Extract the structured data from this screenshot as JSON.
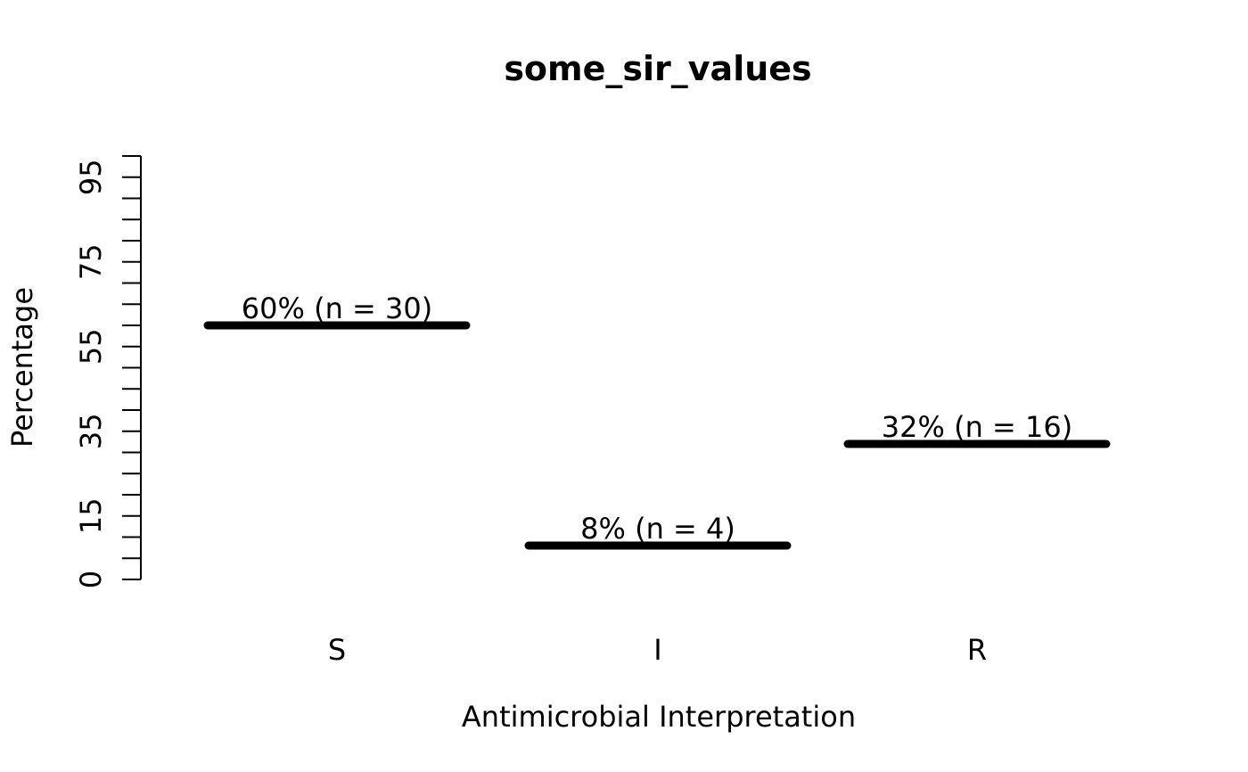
{
  "chart_data": {
    "type": "bar",
    "style": "horizontal-segment-bars",
    "title": "some_sir_values",
    "xlabel": "Antimicrobial Interpretation",
    "ylabel": "Percentage",
    "categories": [
      "S",
      "I",
      "R"
    ],
    "values": [
      60,
      8,
      32
    ],
    "counts": [
      30,
      4,
      16
    ],
    "value_labels": [
      "60% (n = 30)",
      "8% (n = 4)",
      "32% (n = 16)"
    ],
    "ylim": [
      0,
      100
    ],
    "y_tick_step": 5,
    "y_labeled_ticks": [
      0,
      15,
      35,
      55,
      75,
      95
    ],
    "grid": false,
    "legend": null,
    "colors": {
      "foreground": "#000000",
      "background": "#ffffff"
    }
  }
}
